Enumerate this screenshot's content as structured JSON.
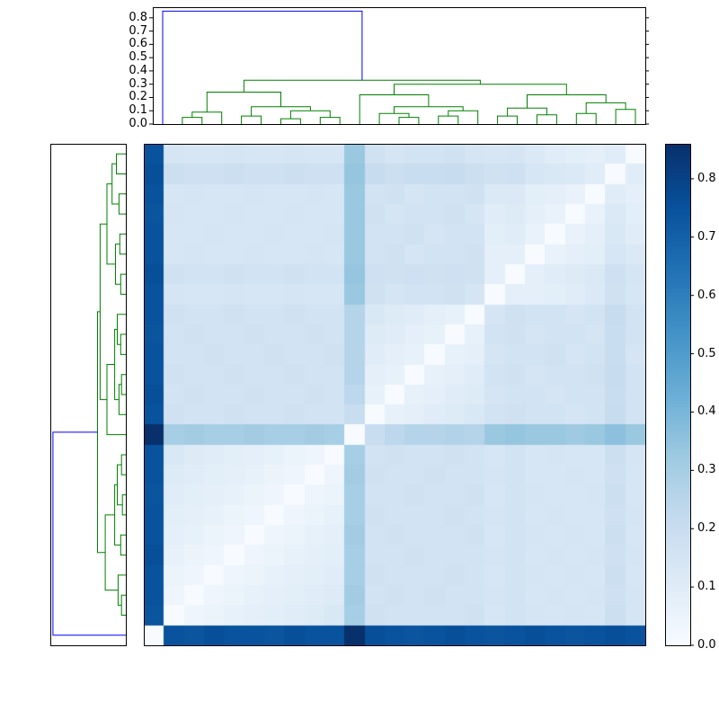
{
  "figure": {
    "background": "#ffffff",
    "frame_color": "#000000"
  },
  "chart_data": {
    "type": "heatmap",
    "subtype": "hierarchically-clustered-distance-matrix-with-dendrograms",
    "title": "",
    "n": 25,
    "vmin": 0.0,
    "vmax": 0.86,
    "colormap": "Blues",
    "colormap_stops": [
      [
        0.0,
        "#f7fbff"
      ],
      [
        0.125,
        "#deebf7"
      ],
      [
        0.25,
        "#c6dbef"
      ],
      [
        0.375,
        "#9ecae1"
      ],
      [
        0.5,
        "#6baed6"
      ],
      [
        0.625,
        "#4292c6"
      ],
      [
        0.75,
        "#2171b5"
      ],
      [
        0.875,
        "#08519c"
      ],
      [
        1.0,
        "#08306b"
      ]
    ],
    "colorbar_ticks": [
      "0.0",
      "0.1",
      "0.2",
      "0.3",
      "0.4",
      "0.5",
      "0.6",
      "0.7",
      "0.8"
    ],
    "dendrogram_axis_ticks": [
      "0.0",
      "0.1",
      "0.2",
      "0.3",
      "0.4",
      "0.5",
      "0.6",
      "0.7",
      "0.8"
    ],
    "dendrogram_axis_max": 0.88,
    "color_threshold": 0.5,
    "link_color_above_threshold": "#0000ff",
    "link_color_below_threshold": "#008000",
    "tree": {
      "h": 0.85,
      "c": [
        0,
        {
          "h": 0.33,
          "c": [
            {
              "h": 0.24,
              "c": [
                {
                  "h": 0.09,
                  "c": [
                    {
                      "h": 0.05,
                      "c": [
                        1,
                        2
                      ]
                    },
                    3
                  ]
                },
                {
                  "h": 0.13,
                  "c": [
                    {
                      "h": 0.06,
                      "c": [
                        4,
                        5
                      ]
                    },
                    {
                      "h": 0.1,
                      "c": [
                        {
                          "h": 0.04,
                          "c": [
                            6,
                            7
                          ]
                        },
                        {
                          "h": 0.05,
                          "c": [
                            8,
                            9
                          ]
                        }
                      ]
                    }
                  ]
                }
              ]
            },
            {
              "h": 0.3,
              "c": [
                {
                  "h": 0.22,
                  "c": [
                    10,
                    {
                      "h": 0.13,
                      "c": [
                        {
                          "h": 0.08,
                          "c": [
                            11,
                            {
                              "h": 0.05,
                              "c": [
                                12,
                                13
                              ]
                            }
                          ]
                        },
                        {
                          "h": 0.1,
                          "c": [
                            {
                              "h": 0.06,
                              "c": [
                                14,
                                15
                              ]
                            },
                            16
                          ]
                        }
                      ]
                    }
                  ]
                },
                {
                  "h": 0.22,
                  "c": [
                    {
                      "h": 0.12,
                      "c": [
                        {
                          "h": 0.06,
                          "c": [
                            17,
                            18
                          ]
                        },
                        {
                          "h": 0.07,
                          "c": [
                            19,
                            20
                          ]
                        }
                      ]
                    },
                    {
                      "h": 0.16,
                      "c": [
                        {
                          "h": 0.08,
                          "c": [
                            21,
                            22
                          ]
                        },
                        {
                          "h": 0.11,
                          "c": [
                            23,
                            24
                          ]
                        }
                      ]
                    }
                  ]
                }
              ]
            }
          ]
        }
      ]
    },
    "matrix": [
      [
        0.75,
        0.15,
        0.14,
        0.14,
        0.15,
        0.14,
        0.14,
        0.15,
        0.14,
        0.14,
        0.33,
        0.17,
        0.15,
        0.16,
        0.16,
        0.17,
        0.15,
        0.14,
        0.15,
        0.12,
        0.1,
        0.09,
        0.08,
        0.1,
        0.0
      ],
      [
        0.76,
        0.19,
        0.18,
        0.18,
        0.19,
        0.18,
        0.18,
        0.19,
        0.18,
        0.18,
        0.34,
        0.21,
        0.19,
        0.2,
        0.2,
        0.21,
        0.19,
        0.17,
        0.18,
        0.14,
        0.13,
        0.12,
        0.1,
        0.0,
        0.1
      ],
      [
        0.75,
        0.14,
        0.15,
        0.14,
        0.14,
        0.15,
        0.14,
        0.14,
        0.15,
        0.14,
        0.33,
        0.16,
        0.17,
        0.15,
        0.16,
        0.16,
        0.17,
        0.12,
        0.12,
        0.09,
        0.08,
        0.06,
        0.0,
        0.1,
        0.08
      ],
      [
        0.74,
        0.15,
        0.14,
        0.14,
        0.15,
        0.14,
        0.14,
        0.15,
        0.14,
        0.14,
        0.33,
        0.17,
        0.15,
        0.16,
        0.16,
        0.17,
        0.15,
        0.1,
        0.11,
        0.08,
        0.06,
        0.0,
        0.06,
        0.12,
        0.09
      ],
      [
        0.75,
        0.14,
        0.14,
        0.15,
        0.14,
        0.14,
        0.15,
        0.14,
        0.14,
        0.15,
        0.33,
        0.16,
        0.16,
        0.17,
        0.15,
        0.16,
        0.16,
        0.09,
        0.1,
        0.06,
        0.0,
        0.06,
        0.08,
        0.13,
        0.1
      ],
      [
        0.75,
        0.14,
        0.15,
        0.14,
        0.14,
        0.15,
        0.14,
        0.14,
        0.15,
        0.14,
        0.33,
        0.16,
        0.17,
        0.15,
        0.16,
        0.16,
        0.17,
        0.08,
        0.08,
        0.0,
        0.06,
        0.08,
        0.09,
        0.14,
        0.12
      ],
      [
        0.76,
        0.17,
        0.16,
        0.16,
        0.17,
        0.16,
        0.16,
        0.17,
        0.16,
        0.16,
        0.34,
        0.18,
        0.17,
        0.18,
        0.17,
        0.18,
        0.17,
        0.08,
        0.0,
        0.08,
        0.1,
        0.11,
        0.12,
        0.18,
        0.15
      ],
      [
        0.75,
        0.15,
        0.14,
        0.14,
        0.15,
        0.14,
        0.14,
        0.15,
        0.14,
        0.14,
        0.33,
        0.17,
        0.15,
        0.16,
        0.16,
        0.17,
        0.15,
        0.0,
        0.08,
        0.08,
        0.09,
        0.1,
        0.12,
        0.17,
        0.14
      ],
      [
        0.75,
        0.17,
        0.16,
        0.16,
        0.17,
        0.16,
        0.16,
        0.17,
        0.16,
        0.16,
        0.26,
        0.13,
        0.11,
        0.1,
        0.08,
        0.07,
        0.0,
        0.15,
        0.17,
        0.16,
        0.16,
        0.15,
        0.16,
        0.21,
        0.16
      ],
      [
        0.74,
        0.16,
        0.17,
        0.16,
        0.16,
        0.17,
        0.16,
        0.16,
        0.17,
        0.16,
        0.26,
        0.11,
        0.1,
        0.08,
        0.07,
        0.0,
        0.07,
        0.16,
        0.17,
        0.15,
        0.16,
        0.16,
        0.15,
        0.2,
        0.16
      ],
      [
        0.75,
        0.16,
        0.16,
        0.17,
        0.16,
        0.16,
        0.17,
        0.16,
        0.16,
        0.17,
        0.26,
        0.1,
        0.08,
        0.07,
        0.0,
        0.07,
        0.08,
        0.15,
        0.16,
        0.16,
        0.17,
        0.15,
        0.16,
        0.2,
        0.15
      ],
      [
        0.75,
        0.17,
        0.16,
        0.16,
        0.17,
        0.16,
        0.16,
        0.17,
        0.16,
        0.16,
        0.26,
        0.08,
        0.07,
        0.0,
        0.07,
        0.08,
        0.1,
        0.16,
        0.17,
        0.15,
        0.16,
        0.16,
        0.17,
        0.21,
        0.16
      ],
      [
        0.76,
        0.16,
        0.17,
        0.16,
        0.16,
        0.17,
        0.16,
        0.16,
        0.17,
        0.16,
        0.24,
        0.07,
        0.0,
        0.07,
        0.08,
        0.1,
        0.11,
        0.15,
        0.16,
        0.16,
        0.15,
        0.16,
        0.16,
        0.2,
        0.16
      ],
      [
        0.75,
        0.17,
        0.16,
        0.16,
        0.17,
        0.16,
        0.16,
        0.17,
        0.16,
        0.16,
        0.2,
        0.0,
        0.07,
        0.08,
        0.1,
        0.11,
        0.13,
        0.16,
        0.17,
        0.16,
        0.16,
        0.15,
        0.16,
        0.21,
        0.16
      ],
      [
        0.86,
        0.3,
        0.31,
        0.3,
        0.3,
        0.31,
        0.3,
        0.3,
        0.31,
        0.3,
        0.0,
        0.2,
        0.24,
        0.26,
        0.26,
        0.27,
        0.26,
        0.33,
        0.34,
        0.33,
        0.33,
        0.32,
        0.33,
        0.36,
        0.33
      ],
      [
        0.75,
        0.13,
        0.11,
        0.1,
        0.09,
        0.08,
        0.07,
        0.05,
        0.04,
        0.0,
        0.3,
        0.16,
        0.17,
        0.16,
        0.16,
        0.17,
        0.16,
        0.14,
        0.16,
        0.14,
        0.15,
        0.14,
        0.14,
        0.19,
        0.15
      ],
      [
        0.75,
        0.11,
        0.1,
        0.09,
        0.08,
        0.07,
        0.05,
        0.04,
        0.0,
        0.04,
        0.31,
        0.17,
        0.16,
        0.16,
        0.17,
        0.16,
        0.16,
        0.15,
        0.16,
        0.14,
        0.14,
        0.15,
        0.14,
        0.18,
        0.14
      ],
      [
        0.74,
        0.1,
        0.09,
        0.08,
        0.07,
        0.05,
        0.04,
        0.0,
        0.04,
        0.05,
        0.3,
        0.16,
        0.16,
        0.17,
        0.16,
        0.16,
        0.17,
        0.14,
        0.16,
        0.15,
        0.14,
        0.14,
        0.15,
        0.19,
        0.14
      ],
      [
        0.75,
        0.09,
        0.08,
        0.07,
        0.05,
        0.04,
        0.0,
        0.04,
        0.05,
        0.07,
        0.3,
        0.17,
        0.16,
        0.16,
        0.16,
        0.17,
        0.16,
        0.15,
        0.16,
        0.14,
        0.15,
        0.14,
        0.14,
        0.18,
        0.15
      ],
      [
        0.75,
        0.08,
        0.07,
        0.05,
        0.04,
        0.0,
        0.04,
        0.05,
        0.07,
        0.08,
        0.31,
        0.16,
        0.17,
        0.16,
        0.16,
        0.16,
        0.17,
        0.14,
        0.16,
        0.15,
        0.14,
        0.15,
        0.14,
        0.19,
        0.14
      ],
      [
        0.76,
        0.07,
        0.05,
        0.04,
        0.0,
        0.04,
        0.05,
        0.07,
        0.08,
        0.09,
        0.3,
        0.16,
        0.16,
        0.17,
        0.16,
        0.16,
        0.16,
        0.15,
        0.16,
        0.14,
        0.15,
        0.14,
        0.15,
        0.18,
        0.15
      ],
      [
        0.75,
        0.05,
        0.04,
        0.0,
        0.04,
        0.05,
        0.07,
        0.08,
        0.09,
        0.1,
        0.3,
        0.17,
        0.16,
        0.16,
        0.16,
        0.17,
        0.16,
        0.14,
        0.16,
        0.15,
        0.14,
        0.15,
        0.14,
        0.19,
        0.14
      ],
      [
        0.75,
        0.04,
        0.0,
        0.04,
        0.05,
        0.07,
        0.08,
        0.09,
        0.1,
        0.11,
        0.31,
        0.16,
        0.17,
        0.16,
        0.17,
        0.16,
        0.16,
        0.15,
        0.16,
        0.14,
        0.15,
        0.14,
        0.15,
        0.18,
        0.15
      ],
      [
        0.74,
        0.0,
        0.04,
        0.05,
        0.07,
        0.08,
        0.09,
        0.1,
        0.11,
        0.13,
        0.3,
        0.17,
        0.16,
        0.16,
        0.16,
        0.16,
        0.17,
        0.14,
        0.16,
        0.15,
        0.14,
        0.15,
        0.14,
        0.19,
        0.15
      ],
      [
        0.0,
        0.75,
        0.74,
        0.76,
        0.75,
        0.75,
        0.74,
        0.76,
        0.75,
        0.75,
        0.86,
        0.76,
        0.75,
        0.74,
        0.75,
        0.76,
        0.75,
        0.74,
        0.75,
        0.76,
        0.75,
        0.74,
        0.75,
        0.76,
        0.75
      ]
    ],
    "layout": {
      "top_dendrogram_box": [
        170,
        8,
        548,
        130
      ],
      "left_dendrogram_box": [
        56,
        160,
        84,
        558
      ],
      "heatmap_box": [
        160,
        160,
        558,
        558
      ],
      "colorbar_box": [
        740,
        160,
        28,
        558
      ]
    }
  }
}
